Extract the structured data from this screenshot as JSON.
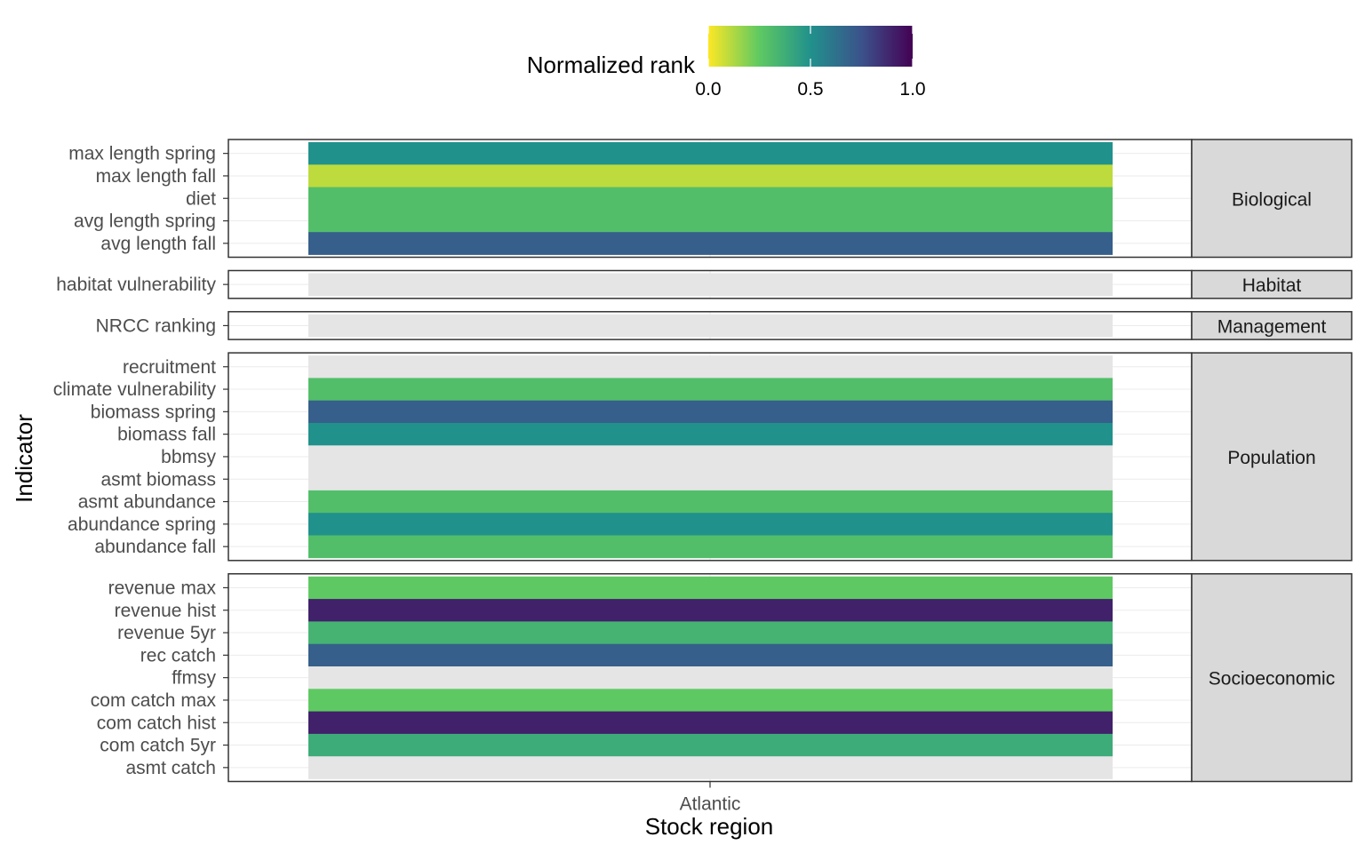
{
  "chart_data": {
    "type": "heatmap",
    "xlabel": "Stock region",
    "ylabel": "Indicator",
    "x_categories": [
      "Atlantic"
    ],
    "legend": {
      "title": "Normalized rank",
      "placement": "top",
      "range": [
        0.0,
        1.0
      ],
      "ticks": [
        "0.0",
        "0.5",
        "1.0"
      ],
      "palette": "viridis-reversed",
      "gradient_stops": [
        "#fde725",
        "#5ec962",
        "#21918c",
        "#3b528b",
        "#440154"
      ],
      "na_color": "#e5e5e5"
    },
    "facets": [
      {
        "name": "Biological",
        "rows": [
          {
            "indicator": "max length spring",
            "value": 0.5
          },
          {
            "indicator": "max length fall",
            "value": 0.1
          },
          {
            "indicator": "diet",
            "value": 0.3
          },
          {
            "indicator": "avg length spring",
            "value": 0.3
          },
          {
            "indicator": "avg length fall",
            "value": 0.7
          }
        ]
      },
      {
        "name": "Habitat",
        "rows": [
          {
            "indicator": "habitat vulnerability",
            "value": null
          }
        ]
      },
      {
        "name": "Management",
        "rows": [
          {
            "indicator": "NRCC ranking",
            "value": null
          }
        ]
      },
      {
        "name": "Population",
        "rows": [
          {
            "indicator": "recruitment",
            "value": null
          },
          {
            "indicator": "climate vulnerability",
            "value": 0.3
          },
          {
            "indicator": "biomass spring",
            "value": 0.7
          },
          {
            "indicator": "biomass fall",
            "value": 0.5
          },
          {
            "indicator": "bbmsy",
            "value": null
          },
          {
            "indicator": "asmt biomass",
            "value": null
          },
          {
            "indicator": "asmt abundance",
            "value": 0.3
          },
          {
            "indicator": "abundance spring",
            "value": 0.5
          },
          {
            "indicator": "abundance fall",
            "value": 0.3
          }
        ]
      },
      {
        "name": "Socioeconomic",
        "rows": [
          {
            "indicator": "revenue max",
            "value": 0.25
          },
          {
            "indicator": "revenue hist",
            "value": 0.9
          },
          {
            "indicator": "revenue 5yr",
            "value": 0.35
          },
          {
            "indicator": "rec catch",
            "value": 0.7
          },
          {
            "indicator": "ffmsy",
            "value": null
          },
          {
            "indicator": "com catch max",
            "value": 0.25
          },
          {
            "indicator": "com catch hist",
            "value": 0.9
          },
          {
            "indicator": "com catch 5yr",
            "value": 0.38
          },
          {
            "indicator": "asmt catch",
            "value": null
          }
        ]
      }
    ]
  }
}
